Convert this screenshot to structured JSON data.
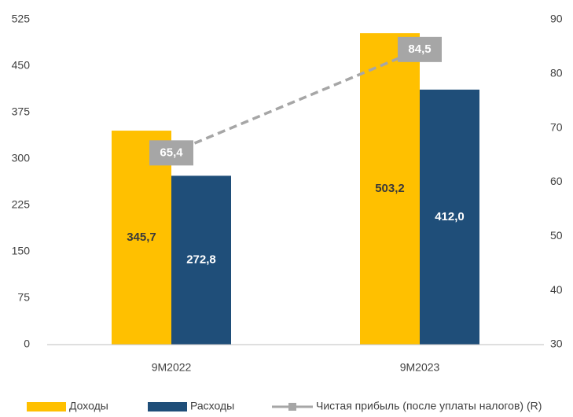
{
  "chart_data": {
    "type": "bar",
    "categories": [
      "9M2022",
      "9M2023"
    ],
    "series": [
      {
        "name": "Доходы",
        "color": "#ffc000",
        "values": [
          345.7,
          503.2
        ],
        "value_labels": [
          "345,7",
          "503,2"
        ]
      },
      {
        "name": "Расходы",
        "color": "#1f4e79",
        "values": [
          272.8,
          412.0
        ],
        "value_labels": [
          "272,8",
          "412,0"
        ]
      },
      {
        "name": "Чистая прибыль (после уплаты налогов) (R)",
        "color": "#a6a6a6",
        "type": "line",
        "axis": "y2",
        "values": [
          65.4,
          84.5
        ],
        "value_labels": [
          "65,4",
          "84,5"
        ]
      }
    ],
    "ylim": [
      0,
      525
    ],
    "yticks": [
      0,
      75,
      150,
      225,
      300,
      375,
      450,
      525
    ],
    "y2lim": [
      30,
      90
    ],
    "y2ticks": [
      30,
      40,
      50,
      60,
      70,
      80,
      90
    ],
    "legend": "bottom",
    "grid": false
  }
}
